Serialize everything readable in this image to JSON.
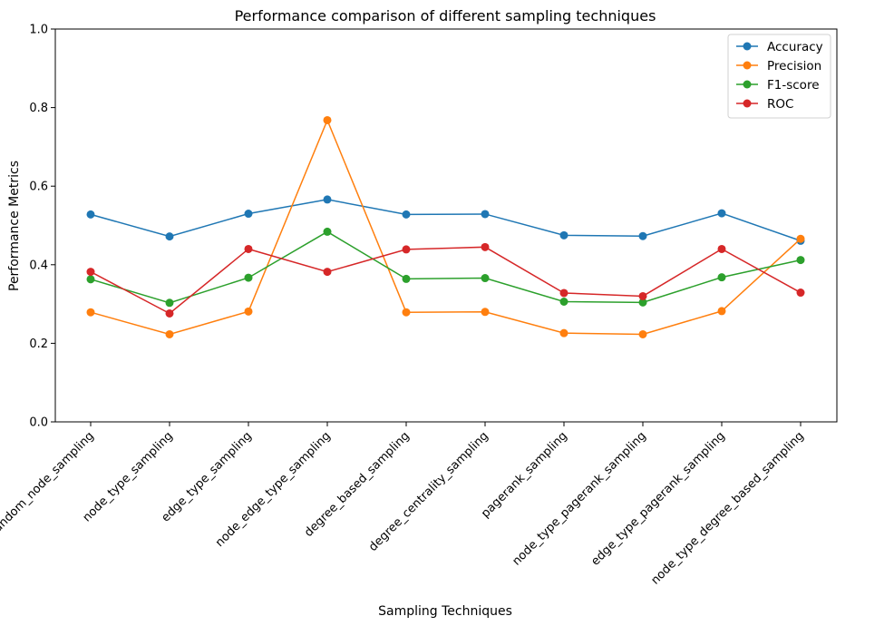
{
  "chart_data": {
    "type": "line",
    "title": "Performance comparison of different sampling techniques",
    "xlabel": "Sampling Techniques",
    "ylabel": "Performance Metrics",
    "ylim": [
      0,
      1.0
    ],
    "yticks": [
      0.0,
      0.2,
      0.4,
      0.6,
      0.8,
      1.0
    ],
    "ytick_labels": [
      "0.0",
      "0.2",
      "0.4",
      "0.6",
      "0.8",
      "1.0"
    ],
    "grid": false,
    "legend_position": "top-right",
    "categories": [
      "random_node_sampling",
      "node_type_sampling",
      "edge_type_sampling",
      "node_edge_type_sampling",
      "degree_based_sampling",
      "degree_centrality_sampling",
      "pagerank_sampling",
      "node_type_pagerank_sampling",
      "edge_type_pagerank_sampling",
      "node_type_degree_based_sampling"
    ],
    "series": [
      {
        "name": "Accuracy",
        "color": "#1f77b4",
        "values": [
          0.528,
          0.472,
          0.53,
          0.566,
          0.528,
          0.529,
          0.475,
          0.473,
          0.531,
          0.461
        ]
      },
      {
        "name": "Precision",
        "color": "#ff7f0e",
        "values": [
          0.279,
          0.223,
          0.281,
          0.768,
          0.279,
          0.28,
          0.226,
          0.223,
          0.282,
          0.466
        ]
      },
      {
        "name": "F1-score",
        "color": "#2ca02c",
        "values": [
          0.363,
          0.303,
          0.367,
          0.484,
          0.364,
          0.366,
          0.306,
          0.304,
          0.368,
          0.412
        ]
      },
      {
        "name": "ROC",
        "color": "#d62728",
        "values": [
          0.382,
          0.276,
          0.44,
          0.382,
          0.439,
          0.445,
          0.328,
          0.32,
          0.44,
          0.329
        ]
      }
    ]
  }
}
